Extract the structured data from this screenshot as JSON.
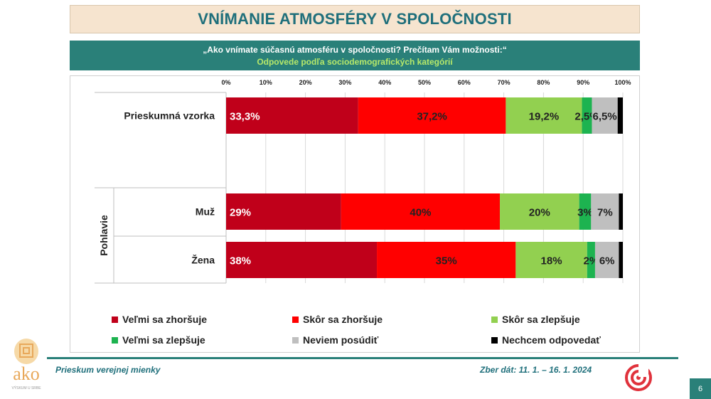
{
  "header": {
    "title": "VNÍMANIE ATMOSFÉRY V SPOLOČNOSTI",
    "question": "„Ako vnímate súčasnú atmosféru v spoločnosti? Prečítam Vám možnosti:“",
    "subtitle": "Odpovede podľa sociodemografických kategórií"
  },
  "chart_data": {
    "type": "bar",
    "orientation": "horizontal",
    "stacked": true,
    "x_ticks": [
      "0%",
      "10%",
      "20%",
      "30%",
      "40%",
      "50%",
      "60%",
      "70%",
      "80%",
      "90%",
      "100%"
    ],
    "xlim": [
      0,
      100
    ],
    "group_label": "Pohlavie",
    "categories": [
      "Prieskumná vzorka",
      "Muž",
      "Žena"
    ],
    "series": [
      {
        "name": "Veľmi sa zhoršuje",
        "color": "#c0001a",
        "values": [
          33.3,
          29,
          38
        ],
        "labels": [
          "33,3%",
          "29%",
          "38%"
        ],
        "label_color": "#ffffff"
      },
      {
        "name": "Skôr sa zhoršuje",
        "color": "#ff0000",
        "values": [
          37.2,
          40,
          35
        ],
        "labels": [
          "37,2%",
          "40%",
          "35%"
        ],
        "label_color": "#222222"
      },
      {
        "name": "Skôr sa zlepšuje",
        "color": "#92d050",
        "values": [
          19.2,
          20,
          18
        ],
        "labels": [
          "19,2%",
          "20%",
          "18%"
        ],
        "label_color": "#222222"
      },
      {
        "name": "Veľmi sa zlepšuje",
        "color": "#1db350",
        "values": [
          2.5,
          3,
          2
        ],
        "labels": [
          "2,5%",
          "3%",
          "2%"
        ],
        "label_color": "#222222"
      },
      {
        "name": "Neviem posúdiť",
        "color": "#bfbfbf",
        "values": [
          6.5,
          7,
          6
        ],
        "labels": [
          "6,5%",
          "7%",
          "6%"
        ],
        "label_color": "#222222"
      },
      {
        "name": "Nechcem odpovedať",
        "color": "#000000",
        "values": [
          1.3,
          1,
          1
        ],
        "labels": [
          "",
          "",
          ""
        ],
        "label_color": "#ffffff"
      }
    ]
  },
  "footer": {
    "left": "Prieskum verejnej mienky",
    "right": "Zber dát: 11. 1. – 16. 1. 2024",
    "page_number": "6",
    "logo_text": "ako",
    "logo_tagline": "VÝSKUM U SRBE"
  }
}
